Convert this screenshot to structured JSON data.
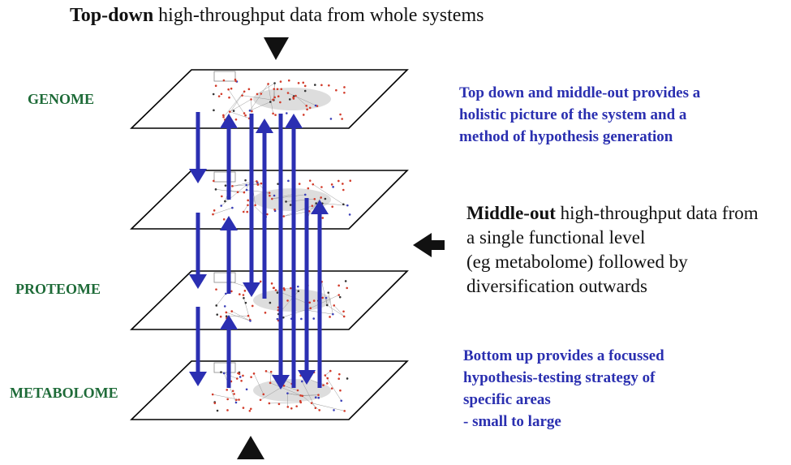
{
  "caption_top": {
    "bold": "Top-down",
    "rest": " high-throughput data from whole systems"
  },
  "levels": {
    "genome": "GENOME",
    "proteome": "PROTEOME",
    "metabolome": "METABOLOME"
  },
  "top_down_note": [
    "Top down and middle-out provides a",
    "holistic picture of the system and a",
    "method of hypothesis generation"
  ],
  "middle_out": {
    "bold": "Middle-out",
    "first_rest": " high-throughput data from",
    "lines": [
      "a single functional level",
      "(eg metabolome) followed by",
      "diversification outwards"
    ]
  },
  "bottom_up_note": [
    "Bottom up provides a focussed",
    "hypothesis-testing strategy of",
    "specific areas",
    "- small to large"
  ],
  "colors": {
    "arrow_blue": "#2b2fb2",
    "level_green": "#1e6b38",
    "note_blue": "#2a2fb0",
    "network_red": "#d23b2a"
  }
}
